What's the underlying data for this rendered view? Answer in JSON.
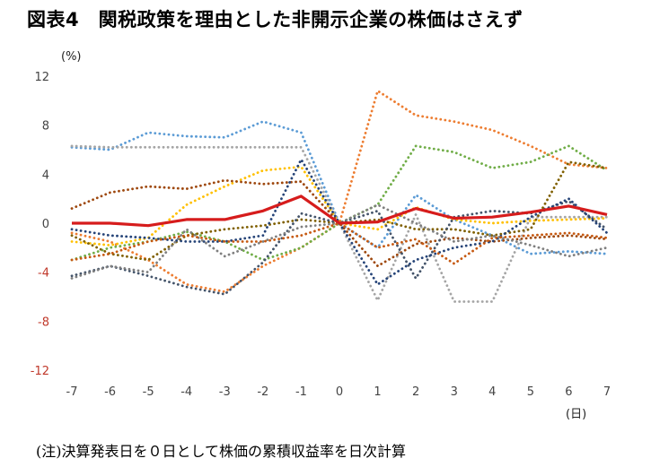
{
  "title": "図表4　関税政策を理由とした非開示企業の株価はさえず",
  "note": "(注)決算発表日を０日として株価の累積収益率を日次計算",
  "chart_data": {
    "type": "line",
    "title": "図表4　関税政策を理由とした非開示企業の株価はさえず",
    "y_unit_label": "(%)",
    "x_unit_label": "(日)",
    "ylim": [
      -12,
      12
    ],
    "xlim": [
      -7,
      7
    ],
    "yticks": [
      12,
      8,
      4,
      0,
      -4,
      -8,
      -12
    ],
    "xticks": [
      -7,
      -6,
      -5,
      -4,
      -3,
      -2,
      -1,
      0,
      1,
      2,
      3,
      4,
      5,
      6,
      7
    ],
    "grid": false,
    "x": [
      -7,
      -6,
      -5,
      -4,
      -3,
      -2,
      -1,
      0,
      1,
      2,
      3,
      4,
      5,
      6,
      7
    ],
    "series": [
      {
        "color": "#5b9bd5",
        "style": "dotted",
        "values": [
          6.2,
          6.0,
          7.4,
          7.1,
          7.0,
          8.3,
          7.4,
          0.0,
          -2.0,
          2.3,
          0.3,
          -1.0,
          -2.5,
          -2.3,
          -2.5
        ]
      },
      {
        "color": "#a5a5a5",
        "style": "dotted",
        "values": [
          6.3,
          6.2,
          6.2,
          6.2,
          6.2,
          6.2,
          6.2,
          0.0,
          -6.3,
          0.7,
          -6.4,
          -6.4,
          0.5,
          0.5,
          0.5
        ]
      },
      {
        "color": "#ed7d31",
        "style": "dotted",
        "values": [
          -0.8,
          -1.5,
          -3.0,
          -5.0,
          -5.6,
          -3.5,
          -2.0,
          0.0,
          10.8,
          8.8,
          8.3,
          7.6,
          6.3,
          4.8,
          4.5
        ]
      },
      {
        "color": "#70ad47",
        "style": "dotted",
        "values": [
          -3.0,
          -2.0,
          -1.5,
          -0.7,
          -1.5,
          -3.0,
          -2.0,
          0.0,
          1.5,
          6.3,
          5.8,
          4.5,
          5.0,
          6.3,
          4.3
        ]
      },
      {
        "color": "#ffc000",
        "style": "dotted",
        "values": [
          -1.5,
          -1.8,
          -1.2,
          1.5,
          3.0,
          4.3,
          4.6,
          0.0,
          -0.5,
          1.3,
          0.3,
          0.0,
          0.2,
          0.3,
          0.4
        ]
      },
      {
        "color": "#9e480e",
        "style": "dotted",
        "values": [
          1.2,
          2.5,
          3.0,
          2.8,
          3.5,
          3.2,
          3.4,
          0.0,
          -3.5,
          -1.7,
          -1.2,
          -1.5,
          -1.2,
          -1.0,
          -1.3
        ]
      },
      {
        "color": "#806000",
        "style": "dotted",
        "values": [
          -1.0,
          -2.5,
          -3.0,
          -1.0,
          -0.5,
          -0.2,
          0.3,
          0.0,
          0.3,
          -0.5,
          -0.5,
          -1.0,
          -0.5,
          5.0,
          4.5
        ]
      },
      {
        "color": "#44546a",
        "style": "dotted",
        "values": [
          -4.3,
          -3.5,
          -4.3,
          -5.2,
          -5.8,
          -3.2,
          0.8,
          0.0,
          1.0,
          -4.5,
          0.5,
          1.0,
          0.8,
          1.8,
          -0.5
        ]
      },
      {
        "color": "#264478",
        "style": "dotted",
        "values": [
          -0.5,
          -1.0,
          -1.2,
          -1.5,
          -1.5,
          -1.0,
          5.2,
          0.0,
          -5.0,
          -3.0,
          -2.0,
          -1.5,
          0.5,
          2.0,
          -0.8
        ]
      },
      {
        "color": "#7f7f7f",
        "style": "dotted",
        "values": [
          -4.5,
          -3.5,
          -4.0,
          -0.5,
          -2.7,
          -1.5,
          -0.3,
          0.0,
          1.5,
          0.0,
          -1.5,
          -1.0,
          -1.8,
          -2.7,
          -2.0
        ]
      },
      {
        "color": "#c65911",
        "style": "dotted",
        "values": [
          -3.0,
          -2.5,
          -1.5,
          -1.0,
          -1.5,
          -1.5,
          -1.0,
          0.0,
          -2.0,
          -1.3,
          -3.3,
          -1.2,
          -1.0,
          -0.8,
          -1.2
        ]
      },
      {
        "color": "#d61c1c",
        "style": "solid",
        "values": [
          0.0,
          0.0,
          -0.2,
          0.3,
          0.3,
          1.0,
          2.2,
          0.0,
          0.1,
          1.2,
          0.4,
          0.5,
          0.9,
          1.4,
          0.7
        ]
      }
    ]
  }
}
